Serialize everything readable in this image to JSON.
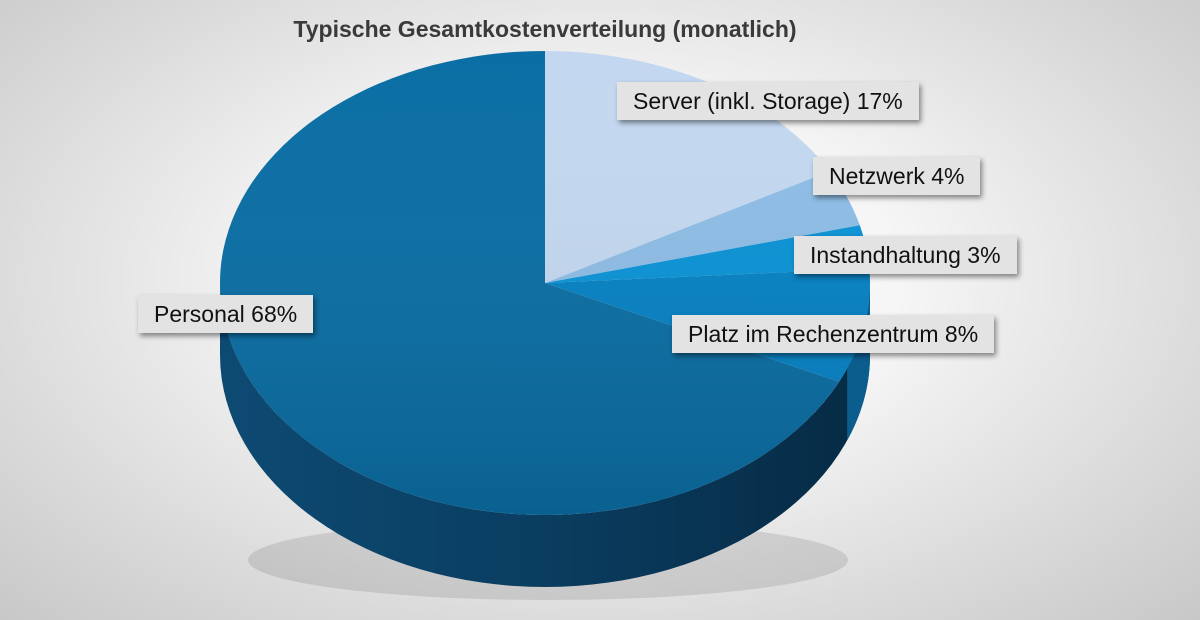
{
  "chart_data": {
    "type": "pie",
    "title": "Typische Gesamtkostenverteilung (monatlich)",
    "slices": [
      {
        "label": "Server (inkl. Storage) 17%",
        "name": "Server (inkl. Storage)",
        "value": 17,
        "color": "#c3d8f0"
      },
      {
        "label": "Netzwerk 4%",
        "name": "Netzwerk",
        "value": 4,
        "color": "#8ebde6"
      },
      {
        "label": "Instandhaltung 3%",
        "name": "Instandhaltung",
        "value": 3,
        "color": "#0a93d6"
      },
      {
        "label": "Platz im Rechenzentrum 8%",
        "name": "Platz im Rechenzentrum",
        "value": 8,
        "color": "#0682c5"
      },
      {
        "label": "Personal 68%",
        "name": "Personal",
        "value": 68,
        "color": "#0a6ea4"
      }
    ]
  }
}
